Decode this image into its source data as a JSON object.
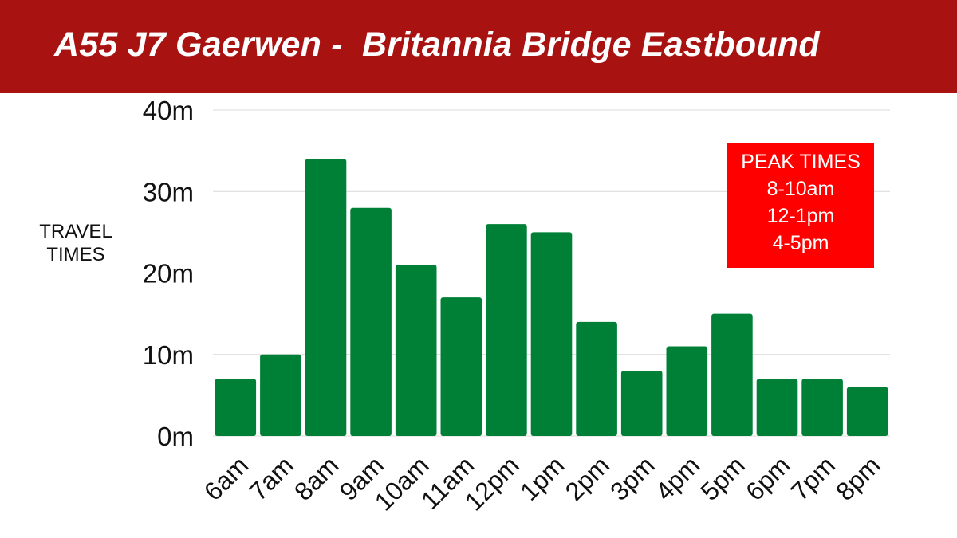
{
  "header": {
    "title": "A55 J7 Gaerwen -  Britannia Bridge Eastbound"
  },
  "yaxis_label": [
    "TRAVEL",
    "TIMES"
  ],
  "peak_box": {
    "lines": [
      "PEAK TIMES",
      "8-10am",
      "12-1pm",
      "4-5pm"
    ],
    "color": "#ff0000"
  },
  "colors": {
    "banner": "#a81312",
    "bar": "#008037"
  },
  "chart_data": {
    "type": "bar",
    "title": "A55 J7 Gaerwen -  Britannia Bridge Eastbound",
    "xlabel": "",
    "ylabel": "TRAVEL TIMES",
    "categories": [
      "6am",
      "7am",
      "8am",
      "9am",
      "10am",
      "11am",
      "12pm",
      "1pm",
      "2pm",
      "3pm",
      "4pm",
      "5pm",
      "6pm",
      "7pm",
      "8pm"
    ],
    "values": [
      7,
      10,
      34,
      28,
      21,
      17,
      26,
      25,
      14,
      8,
      11,
      15,
      7,
      7,
      6
    ],
    "ylim": [
      0,
      40
    ],
    "yticks": [
      0,
      10,
      20,
      30,
      40
    ],
    "ytick_labels": [
      "0m",
      "10m",
      "20m",
      "30m",
      "40m"
    ],
    "grid": true,
    "legend": "none"
  }
}
